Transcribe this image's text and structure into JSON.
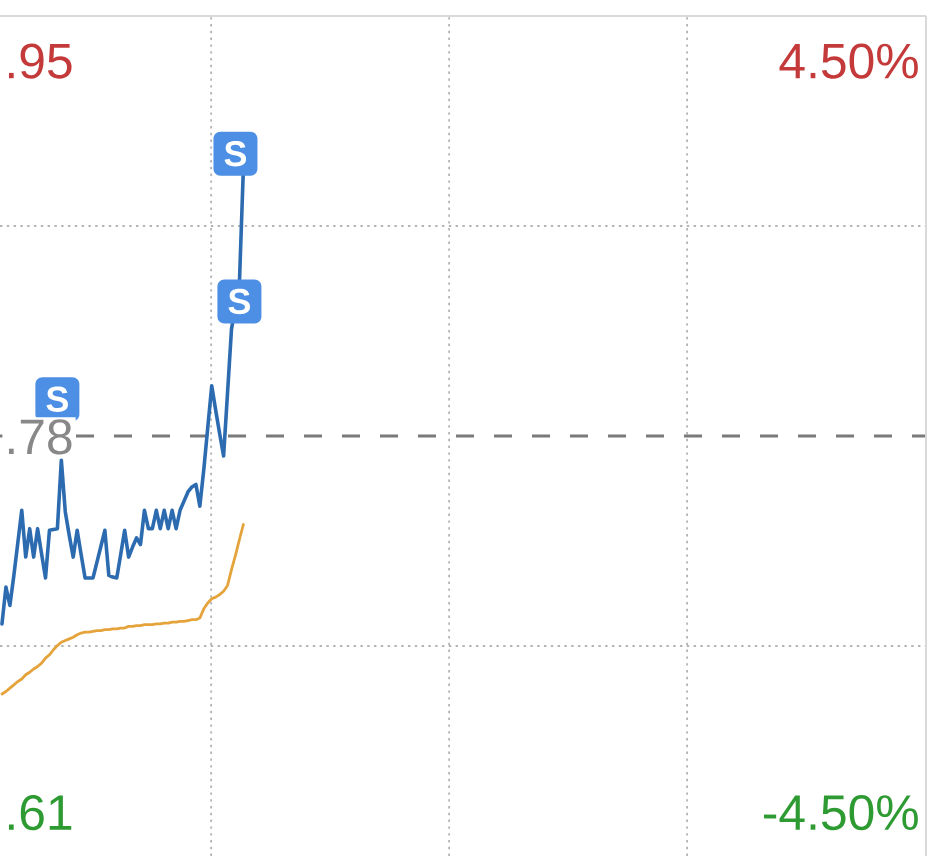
{
  "chart_data": {
    "type": "line",
    "categories": [
      null,
      null,
      null,
      null,
      null,
      null,
      null,
      null,
      null,
      null,
      null,
      null,
      null,
      null,
      null,
      null,
      null,
      null,
      null,
      null,
      null,
      null,
      null,
      null,
      null,
      null,
      null,
      null,
      null,
      null,
      null,
      null,
      null,
      null,
      null,
      null,
      null,
      null,
      null,
      null,
      null,
      null,
      null,
      null,
      null,
      null,
      null,
      null,
      null,
      null,
      null,
      null,
      null,
      null,
      null,
      null,
      null,
      null,
      null,
      null,
      null,
      null,
      null,
      null,
      null,
      null,
      null,
      null,
      null,
      null,
      null,
      null,
      null,
      null,
      null,
      null,
      null,
      null,
      null,
      null,
      null,
      null,
      null,
      null,
      null,
      null,
      null,
      null,
      null,
      null,
      null,
      null,
      null,
      null,
      null,
      null,
      null,
      null,
      null,
      null,
      null,
      null,
      null,
      null,
      null,
      null,
      null,
      null,
      null,
      null,
      null,
      null,
      null,
      null,
      null,
      null,
      null,
      null,
      null,
      null,
      null,
      null,
      null,
      null,
      null,
      null,
      null,
      null,
      null,
      null,
      null,
      null,
      null,
      null,
      null,
      null,
      null,
      null,
      null,
      null,
      null,
      null,
      null,
      null,
      null,
      null,
      null,
      null,
      null,
      null,
      null,
      null,
      null,
      null,
      null,
      null,
      null,
      null,
      null,
      null,
      null,
      null,
      null,
      null,
      null,
      null,
      null,
      null,
      null,
      null,
      null,
      null,
      null,
      null,
      null,
      null,
      null,
      null,
      null,
      null,
      null,
      null,
      null,
      null,
      null,
      null,
      null,
      null,
      null,
      null,
      null,
      null,
      null,
      null,
      null,
      null,
      null,
      null,
      null,
      null,
      null,
      null,
      null,
      null,
      null,
      null,
      null,
      null,
      null,
      null,
      null,
      null,
      null,
      null,
      null,
      null,
      null,
      null,
      null,
      null,
      null,
      null,
      null,
      null,
      null,
      null,
      null,
      null,
      null,
      null,
      null,
      null,
      null,
      null
    ],
    "ylim": [
      0.59,
      0.97
    ],
    "yticks": [
      {
        "value": 0.95,
        "label": ".95"
      },
      {
        "value": 0.78,
        "label": ".78"
      },
      {
        "value": 0.61,
        "label": ".61"
      }
    ],
    "y2lim": [
      -5.03,
      5.03
    ],
    "y2ticks": [
      {
        "value": 4.5,
        "label": "4.50%"
      },
      {
        "value": -4.5,
        "label": "-4.50%"
      }
    ],
    "ref_lines": [
      {
        "axis": "y2",
        "value": 0,
        "color": "#7a7a7a",
        "line_style": "dashed"
      },
      {
        "axis": "y",
        "value": 0.875,
        "color": "#b4b4b4",
        "line_style": "dotted"
      },
      {
        "axis": "y",
        "value": 0.685,
        "color": "#b4b4b4",
        "line_style": "dotted"
      }
    ],
    "series": [
      {
        "color": "#2d6bb0",
        "axis": "y2",
        "values": [
          -2.25,
          -1.81,
          -2.03,
          -1.67,
          -1.28,
          -0.89,
          -1.45,
          -1.11,
          -1.45,
          -1.11,
          -1.41,
          -1.7,
          -1.13,
          -1.12,
          -1.11,
          -0.29,
          -0.91,
          -1.19,
          -1.45,
          -1.13,
          -1.42,
          -1.7,
          -1.7,
          -1.7,
          -1.51,
          -1.32,
          -1.13,
          -1.67,
          -1.69,
          -1.7,
          -1.42,
          -1.13,
          -1.45,
          -1.33,
          -1.22,
          -1.3,
          -0.89,
          -1.11,
          -1.11,
          -0.89,
          -1.11,
          -0.89,
          -1.11,
          -0.89,
          -1.11,
          -0.89,
          -0.78,
          -0.67,
          -0.61,
          -0.58,
          -0.84,
          -0.4,
          0.1,
          0.6,
          0.31,
          0.03,
          -0.24,
          0.52,
          1.28,
          1.55,
          1.83,
          3.2,
          null,
          null,
          null,
          null,
          null,
          null,
          null,
          null,
          null,
          null,
          null,
          null,
          null,
          null,
          null,
          null,
          null,
          null,
          null,
          null,
          null,
          null,
          null,
          null,
          null,
          null,
          null,
          null,
          null,
          null,
          null,
          null,
          null,
          null,
          null,
          null,
          null,
          null,
          null,
          null,
          null,
          null,
          null,
          null,
          null,
          null,
          null,
          null,
          null,
          null,
          null,
          null,
          null,
          null,
          null,
          null,
          null,
          null,
          null,
          null,
          null,
          null,
          null,
          null,
          null,
          null,
          null,
          null,
          null,
          null,
          null,
          null,
          null,
          null,
          null,
          null,
          null,
          null,
          null,
          null,
          null,
          null,
          null,
          null,
          null,
          null,
          null,
          null,
          null,
          null,
          null,
          null,
          null,
          null,
          null,
          null,
          null,
          null,
          null,
          null,
          null,
          null,
          null,
          null,
          null,
          null,
          null,
          null,
          null,
          null,
          null,
          null,
          null,
          null,
          null,
          null,
          null,
          null,
          null,
          null,
          null,
          null,
          null,
          null,
          null,
          null,
          null,
          null,
          null,
          null,
          null,
          null,
          null,
          null,
          null,
          null,
          null,
          null,
          null,
          null,
          null,
          null,
          null,
          null,
          null,
          null,
          null,
          null,
          null,
          null,
          null,
          null,
          null,
          null,
          null,
          null,
          null,
          null,
          null,
          null,
          null,
          null,
          null,
          null,
          null,
          null,
          null,
          null,
          null,
          null,
          null,
          null
        ]
      },
      {
        "color": "#e5a33b",
        "axis": "y2",
        "values": [
          -3.09,
          -3.06,
          -3.02,
          -2.98,
          -2.94,
          -2.91,
          -2.86,
          -2.83,
          -2.79,
          -2.76,
          -2.72,
          -2.66,
          -2.62,
          -2.56,
          -2.51,
          -2.47,
          -2.45,
          -2.43,
          -2.41,
          -2.38,
          -2.36,
          -2.35,
          -2.35,
          -2.34,
          -2.33,
          -2.33,
          -2.32,
          -2.32,
          -2.31,
          -2.31,
          -2.3,
          -2.3,
          -2.28,
          -2.28,
          -2.27,
          -2.27,
          -2.26,
          -2.26,
          -2.26,
          -2.25,
          -2.25,
          -2.24,
          -2.24,
          -2.23,
          -2.23,
          -2.22,
          -2.22,
          -2.21,
          -2.2,
          -2.2,
          -2.18,
          -2.07,
          -2.0,
          -1.95,
          -1.93,
          -1.9,
          -1.86,
          -1.79,
          -1.6,
          -1.43,
          -1.24,
          -1.06,
          null,
          null,
          null,
          null,
          null,
          null,
          null,
          null,
          null,
          null,
          null,
          null,
          null,
          null,
          null,
          null,
          null,
          null,
          null,
          null,
          null,
          null,
          null,
          null,
          null,
          null,
          null,
          null,
          null,
          null,
          null,
          null,
          null,
          null,
          null,
          null,
          null,
          null,
          null,
          null,
          null,
          null,
          null,
          null,
          null,
          null,
          null,
          null,
          null,
          null,
          null,
          null,
          null,
          null,
          null,
          null,
          null,
          null,
          null,
          null,
          null,
          null,
          null,
          null,
          null,
          null,
          null,
          null,
          null,
          null,
          null,
          null,
          null,
          null,
          null,
          null,
          null,
          null,
          null,
          null,
          null,
          null,
          null,
          null,
          null,
          null,
          null,
          null,
          null,
          null,
          null,
          null,
          null,
          null,
          null,
          null,
          null,
          null,
          null,
          null,
          null,
          null,
          null,
          null,
          null,
          null,
          null,
          null,
          null,
          null,
          null,
          null,
          null,
          null,
          null,
          null,
          null,
          null,
          null,
          null,
          null,
          null,
          null,
          null,
          null,
          null,
          null,
          null,
          null,
          null,
          null,
          null,
          null,
          null,
          null,
          null,
          null,
          null,
          null,
          null,
          null,
          null,
          null,
          null,
          null,
          null,
          null,
          null,
          null,
          null,
          null,
          null,
          null,
          null,
          null,
          null,
          null,
          null,
          null,
          null,
          null,
          null,
          null,
          null,
          null,
          null,
          null,
          null,
          null,
          null,
          null,
          null
        ]
      },
      {
        "type": "scatter",
        "marker": "square",
        "color": "#4c8fe4",
        "axis": "y2",
        "values": [
          null,
          null,
          null,
          null,
          null,
          null,
          null,
          null,
          null,
          null,
          null,
          null,
          null,
          null,
          0.44,
          null,
          null,
          null,
          null,
          null,
          null,
          null,
          null,
          null,
          null,
          null,
          null,
          null,
          null,
          null,
          null,
          null,
          null,
          null,
          null,
          null,
          null,
          null,
          null,
          null,
          null,
          null,
          null,
          null,
          null,
          null,
          null,
          null,
          null,
          null,
          null,
          null,
          null,
          null,
          null,
          null,
          null,
          null,
          null,
          3.38,
          1.61,
          null,
          null,
          null,
          null,
          null,
          null,
          null,
          null,
          null,
          null,
          null,
          null,
          null,
          null,
          null,
          null,
          null,
          null,
          null,
          null,
          null,
          null,
          null,
          null,
          null,
          null,
          null,
          null,
          null,
          null,
          null,
          null,
          null,
          null,
          null,
          null,
          null,
          null,
          null,
          null,
          null,
          null,
          null,
          null,
          null,
          null,
          null,
          null,
          null,
          null,
          null,
          null,
          null,
          null,
          null,
          null,
          null,
          null,
          null,
          null,
          null,
          null,
          null,
          null,
          null,
          null,
          null,
          null,
          null,
          null,
          null,
          null,
          null,
          null,
          null,
          null,
          null,
          null,
          null,
          null,
          null,
          null,
          null,
          null,
          null,
          null,
          null,
          null,
          null,
          null,
          null,
          null,
          null,
          null,
          null,
          null,
          null,
          null,
          null,
          null,
          null,
          null,
          null,
          null,
          null,
          null,
          null,
          null,
          null,
          null,
          null,
          null,
          null,
          null,
          null,
          null,
          null,
          null,
          null,
          null,
          null,
          null,
          null,
          null,
          null,
          null,
          null,
          null,
          null,
          null,
          null,
          null,
          null,
          null,
          null,
          null,
          null,
          null,
          null,
          null,
          null,
          null,
          null,
          null,
          null,
          null,
          null,
          null,
          null,
          null,
          null,
          null,
          null,
          null,
          null,
          null,
          null,
          null,
          null,
          null,
          null,
          null,
          null,
          null,
          null,
          null,
          null,
          null,
          null,
          null,
          null,
          null,
          null
        ],
        "value_labels": [
          null,
          null,
          null,
          null,
          null,
          null,
          null,
          null,
          null,
          null,
          null,
          null,
          null,
          null,
          "S",
          null,
          null,
          null,
          null,
          null,
          null,
          null,
          null,
          null,
          null,
          null,
          null,
          null,
          null,
          null,
          null,
          null,
          null,
          null,
          null,
          null,
          null,
          null,
          null,
          null,
          null,
          null,
          null,
          null,
          null,
          null,
          null,
          null,
          null,
          null,
          null,
          null,
          null,
          null,
          null,
          null,
          null,
          null,
          null,
          "S",
          "S",
          null,
          null,
          null,
          null,
          null,
          null,
          null,
          null,
          null,
          null,
          null,
          null,
          null,
          null,
          null,
          null,
          null,
          null,
          null,
          null,
          null,
          null,
          null,
          null,
          null,
          null,
          null,
          null,
          null,
          null,
          null,
          null,
          null,
          null,
          null,
          null,
          null,
          null,
          null,
          null,
          null,
          null,
          null,
          null,
          null,
          null,
          null,
          null,
          null,
          null,
          null,
          null,
          null,
          null,
          null,
          null,
          null,
          null,
          null,
          null,
          null,
          null,
          null,
          null,
          null,
          null,
          null,
          null,
          null,
          null,
          null,
          null,
          null,
          null,
          null,
          null,
          null,
          null,
          null,
          null,
          null,
          null,
          null,
          null,
          null,
          null,
          null,
          null,
          null,
          null,
          null,
          null,
          null,
          null,
          null,
          null,
          null,
          null,
          null,
          null,
          null,
          null,
          null,
          null,
          null,
          null,
          null,
          null,
          null,
          null,
          null,
          null,
          null,
          null,
          null,
          null,
          null,
          null,
          null,
          null,
          null,
          null,
          null,
          null,
          null,
          null,
          null,
          null,
          null,
          null,
          null,
          null,
          null,
          null,
          null,
          null,
          null,
          null,
          null,
          null,
          null,
          null,
          null,
          null,
          null,
          null,
          null,
          null,
          null,
          null,
          null,
          null,
          null,
          null,
          null,
          null,
          null,
          null,
          null,
          null,
          null,
          null,
          null,
          null,
          null,
          null,
          null,
          null,
          null,
          null,
          null,
          null,
          null
        ]
      }
    ]
  }
}
